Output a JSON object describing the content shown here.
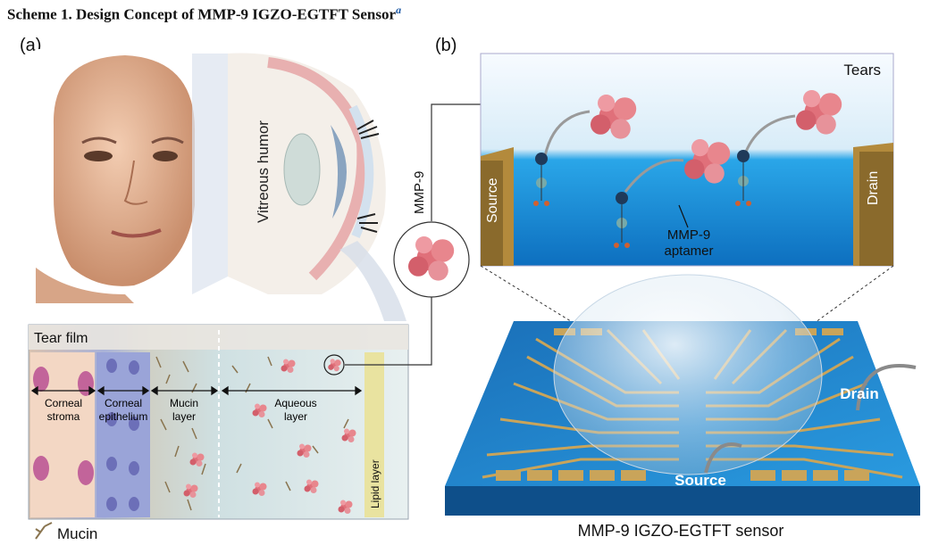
{
  "caption": {
    "title": "Scheme 1. Design Concept of MMP-9 IGZO-EGTFT Sensor",
    "footnote_mark": "a"
  },
  "panel_a": {
    "label": "(a)",
    "eye": {
      "vitreous": "Vitreous humor"
    },
    "tear_film": {
      "title": "Tear film",
      "layers": [
        {
          "line1": "Corneal",
          "line2": "stroma"
        },
        {
          "line1": "Corneal",
          "line2": "epithelium"
        },
        {
          "line1": "Mucin",
          "line2": "layer"
        },
        {
          "line1": "Aqueous",
          "line2": "layer"
        }
      ],
      "lipid": "Lipid layer"
    },
    "legend": "Mucin"
  },
  "panel_b": {
    "label": "(b)",
    "mmp9": "MMP-9",
    "zoom": {
      "tears": "Tears",
      "source": "Source",
      "drain": "Drain",
      "aptamer_line1": "MMP-9",
      "aptamer_line2": "aptamer"
    },
    "chip": {
      "drain": "Drain",
      "source": "Source",
      "caption": "MMP-9 IGZO-EGTFT sensor"
    }
  },
  "colors": {
    "skin": "#e8b99a",
    "tear_blue": "#1a8fd6",
    "protein": "#e0707a",
    "gold": "#b38a3c",
    "chip_blue": "#1c7fc4"
  }
}
